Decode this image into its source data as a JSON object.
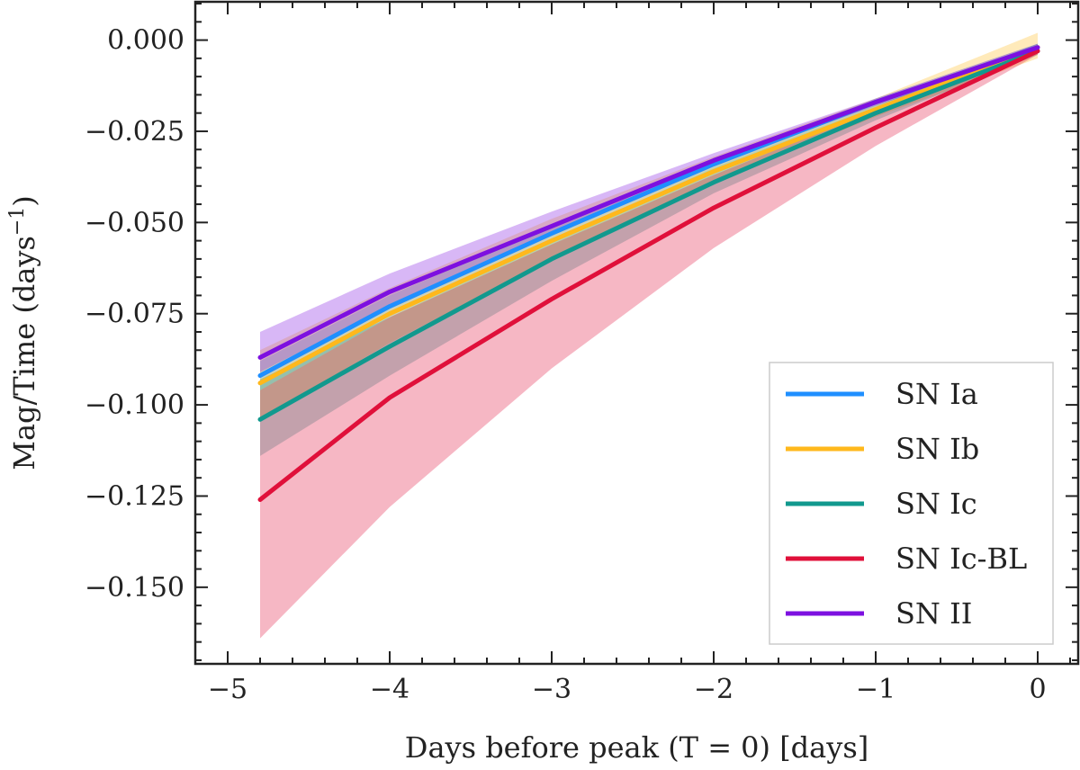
{
  "chart_data": {
    "type": "line",
    "title": "",
    "xlabel": "Days before peak (T = 0) [days]",
    "ylabel": "Mag/Time (days",
    "ylabel_sup": "−1",
    "ylabel_close": ")",
    "xlim": [
      -5.2,
      0.25
    ],
    "ylim": [
      -0.171,
      0.0105
    ],
    "xticks": [
      -5,
      -4,
      -3,
      -2,
      -1,
      0
    ],
    "xtick_labels": [
      "−5",
      "−4",
      "−3",
      "−2",
      "−1",
      "0"
    ],
    "yticks": [
      0.0,
      -0.025,
      -0.05,
      -0.075,
      -0.1,
      -0.125,
      -0.15
    ],
    "ytick_labels": [
      "0.000",
      "−0.025",
      "−0.050",
      "−0.075",
      "−0.100",
      "−0.125",
      "−0.150"
    ],
    "grid": false,
    "legend_position": "bottom-right",
    "x": [
      -4.8,
      -4.0,
      -3.0,
      -2.0,
      -1.0,
      0.0
    ],
    "series": [
      {
        "name": "SN Ia",
        "color": "#1f8fff",
        "values": [
          -0.092,
          -0.073,
          -0.053,
          -0.034,
          -0.017,
          -0.002
        ],
        "lower": [
          -0.096,
          -0.076,
          -0.055,
          -0.035,
          -0.018,
          -0.003
        ],
        "upper": [
          -0.088,
          -0.07,
          -0.051,
          -0.033,
          -0.016,
          -0.001
        ]
      },
      {
        "name": "SN Ib",
        "color": "#ffb81c",
        "values": [
          -0.094,
          -0.075,
          -0.055,
          -0.036,
          -0.019,
          -0.002
        ],
        "lower": [
          -0.104,
          -0.083,
          -0.06,
          -0.039,
          -0.021,
          -0.005
        ],
        "upper": [
          -0.085,
          -0.068,
          -0.049,
          -0.032,
          -0.016,
          0.002
        ]
      },
      {
        "name": "SN Ic",
        "color": "#11998e",
        "values": [
          -0.104,
          -0.084,
          -0.06,
          -0.039,
          -0.02,
          -0.003
        ],
        "lower": [
          -0.114,
          -0.092,
          -0.066,
          -0.042,
          -0.022,
          -0.004
        ],
        "upper": [
          -0.093,
          -0.076,
          -0.055,
          -0.035,
          -0.018,
          -0.001
        ]
      },
      {
        "name": "SN Ic-BL",
        "color": "#e0103a",
        "values": [
          -0.126,
          -0.098,
          -0.071,
          -0.046,
          -0.024,
          -0.003
        ],
        "lower": [
          -0.164,
          -0.128,
          -0.09,
          -0.057,
          -0.029,
          -0.004
        ],
        "upper": [
          -0.096,
          -0.076,
          -0.056,
          -0.037,
          -0.019,
          -0.002
        ]
      },
      {
        "name": "SN II",
        "color": "#7d10e0",
        "values": [
          -0.087,
          -0.069,
          -0.051,
          -0.033,
          -0.017,
          -0.002
        ],
        "lower": [
          -0.091,
          -0.073,
          -0.053,
          -0.034,
          -0.018,
          -0.003
        ],
        "upper": [
          -0.08,
          -0.064,
          -0.047,
          -0.031,
          -0.016,
          -0.001
        ]
      }
    ]
  }
}
